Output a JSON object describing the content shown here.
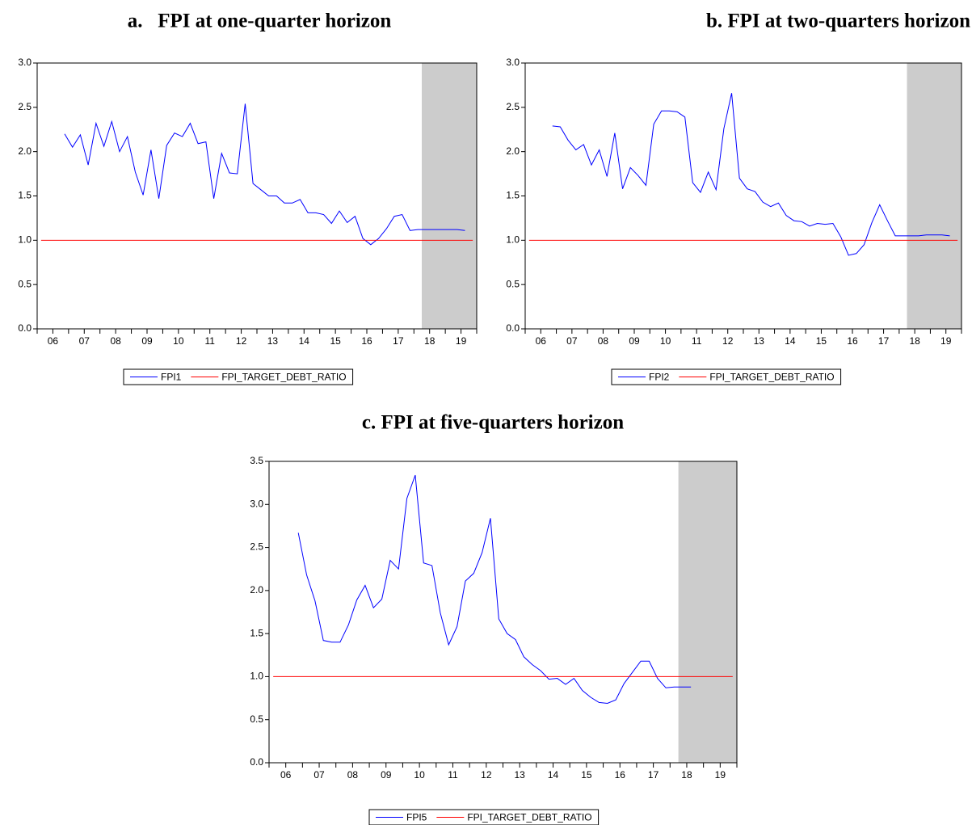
{
  "chart_data": [
    {
      "type": "line",
      "title": "a.   FPI at one-quarter horizon",
      "categories": [
        "06",
        null,
        null,
        null,
        "07",
        null,
        null,
        null,
        "08",
        null,
        null,
        null,
        "09",
        null,
        null,
        null,
        "10",
        null,
        null,
        null,
        "11",
        null,
        null,
        null,
        "12",
        null,
        null,
        null,
        "13",
        null,
        null,
        null,
        "14",
        null,
        null,
        null,
        "15",
        null,
        null,
        null,
        "16",
        null,
        null,
        null,
        "17",
        null,
        null,
        null,
        "18",
        null,
        null,
        null,
        "19",
        null,
        null,
        null
      ],
      "series": [
        {
          "name": "FPI1",
          "color": "#0000ff",
          "values": [
            null,
            null,
            null,
            2.2,
            2.05,
            2.19,
            1.85,
            2.32,
            2.06,
            2.34,
            2.0,
            2.17,
            1.77,
            1.51,
            2.02,
            1.47,
            2.07,
            2.21,
            2.17,
            2.32,
            2.09,
            2.11,
            1.47,
            1.98,
            1.76,
            1.75,
            2.54,
            1.64,
            1.57,
            1.5,
            1.5,
            1.42,
            1.42,
            1.46,
            1.31,
            1.31,
            1.29,
            1.19,
            1.33,
            1.2,
            1.27,
            1.02,
            0.95,
            1.02,
            1.13,
            1.27,
            1.29,
            1.11,
            1.12,
            1.12,
            1.12,
            1.12,
            1.12,
            1.12,
            1.11,
            null
          ]
        },
        {
          "name": "FPI_TARGET_DEBT_RATIO",
          "color": "#ff0000",
          "values": [
            1,
            1,
            1,
            1,
            1,
            1,
            1,
            1,
            1,
            1,
            1,
            1,
            1,
            1,
            1,
            1,
            1,
            1,
            1,
            1,
            1,
            1,
            1,
            1,
            1,
            1,
            1,
            1,
            1,
            1,
            1,
            1,
            1,
            1,
            1,
            1,
            1,
            1,
            1,
            1,
            1,
            1,
            1,
            1,
            1,
            1,
            1,
            1,
            1,
            1,
            1,
            1,
            1,
            1,
            1,
            1
          ]
        }
      ],
      "ylim": [
        0,
        3
      ],
      "yticks": [
        {
          "value": 0,
          "label": "0.0"
        },
        {
          "value": 0.5,
          "label": "0.5"
        },
        {
          "value": 1,
          "label": "1.0"
        },
        {
          "value": 1.5,
          "label": "1.5"
        },
        {
          "value": 2,
          "label": "2.0"
        },
        {
          "value": 2.5,
          "label": "2.5"
        },
        {
          "value": 3,
          "label": "3.0"
        }
      ],
      "shade": [
        49,
        56
      ],
      "shade_color": "#cccccc"
    },
    {
      "type": "line",
      "title": "b. FPI at two-quarters horizon",
      "categories": [
        "06",
        null,
        null,
        null,
        "07",
        null,
        null,
        null,
        "08",
        null,
        null,
        null,
        "09",
        null,
        null,
        null,
        "10",
        null,
        null,
        null,
        "11",
        null,
        null,
        null,
        "12",
        null,
        null,
        null,
        "13",
        null,
        null,
        null,
        "14",
        null,
        null,
        null,
        "15",
        null,
        null,
        null,
        "16",
        null,
        null,
        null,
        "17",
        null,
        null,
        null,
        "18",
        null,
        null,
        null,
        "19",
        null,
        null,
        null
      ],
      "series": [
        {
          "name": "FPI2",
          "color": "#0000ff",
          "values": [
            null,
            null,
            null,
            2.29,
            2.28,
            2.13,
            2.02,
            2.08,
            1.85,
            2.02,
            1.72,
            2.21,
            1.58,
            1.82,
            1.73,
            1.62,
            2.31,
            2.46,
            2.46,
            2.45,
            2.39,
            1.65,
            1.54,
            1.77,
            1.57,
            2.26,
            2.66,
            1.7,
            1.58,
            1.55,
            1.43,
            1.38,
            1.42,
            1.28,
            1.22,
            1.21,
            1.16,
            1.19,
            1.18,
            1.19,
            1.04,
            0.83,
            0.85,
            0.95,
            1.2,
            1.4,
            1.22,
            1.05,
            1.05,
            1.05,
            1.05,
            1.06,
            1.06,
            1.06,
            1.05,
            null
          ]
        },
        {
          "name": "FPI_TARGET_DEBT_RATIO",
          "color": "#ff0000",
          "values": [
            1,
            1,
            1,
            1,
            1,
            1,
            1,
            1,
            1,
            1,
            1,
            1,
            1,
            1,
            1,
            1,
            1,
            1,
            1,
            1,
            1,
            1,
            1,
            1,
            1,
            1,
            1,
            1,
            1,
            1,
            1,
            1,
            1,
            1,
            1,
            1,
            1,
            1,
            1,
            1,
            1,
            1,
            1,
            1,
            1,
            1,
            1,
            1,
            1,
            1,
            1,
            1,
            1,
            1,
            1,
            1
          ]
        }
      ],
      "ylim": [
        0,
        3
      ],
      "yticks": [
        {
          "value": 0,
          "label": "0.0"
        },
        {
          "value": 0.5,
          "label": "0.5"
        },
        {
          "value": 1,
          "label": "1.0"
        },
        {
          "value": 1.5,
          "label": "1.5"
        },
        {
          "value": 2,
          "label": "2.0"
        },
        {
          "value": 2.5,
          "label": "2.5"
        },
        {
          "value": 3,
          "label": "3.0"
        }
      ],
      "shade": [
        49,
        56
      ],
      "shade_color": "#cccccc"
    },
    {
      "type": "line",
      "title": "c. FPI at five-quarters horizon",
      "categories": [
        "06",
        null,
        null,
        null,
        "07",
        null,
        null,
        null,
        "08",
        null,
        null,
        null,
        "09",
        null,
        null,
        null,
        "10",
        null,
        null,
        null,
        "11",
        null,
        null,
        null,
        "12",
        null,
        null,
        null,
        "13",
        null,
        null,
        null,
        "14",
        null,
        null,
        null,
        "15",
        null,
        null,
        null,
        "16",
        null,
        null,
        null,
        "17",
        null,
        null,
        null,
        "18",
        null,
        null,
        null,
        "19",
        null,
        null,
        null
      ],
      "series": [
        {
          "name": "FPI5",
          "color": "#0000ff",
          "values": [
            null,
            null,
            null,
            2.67,
            2.18,
            1.88,
            1.42,
            1.4,
            1.4,
            1.6,
            1.89,
            2.06,
            1.8,
            1.9,
            2.35,
            2.25,
            3.07,
            3.34,
            2.32,
            2.29,
            1.74,
            1.37,
            1.58,
            2.11,
            2.2,
            2.44,
            2.84,
            1.67,
            1.5,
            1.43,
            1.23,
            1.14,
            1.07,
            0.97,
            0.98,
            0.91,
            0.98,
            0.84,
            0.76,
            0.7,
            0.69,
            0.73,
            0.92,
            1.05,
            1.18,
            1.18,
            0.98,
            0.87,
            0.88,
            0.88,
            0.88,
            null,
            null,
            null,
            null,
            null
          ]
        },
        {
          "name": "FPI_TARGET_DEBT_RATIO",
          "color": "#ff0000",
          "values": [
            1,
            1,
            1,
            1,
            1,
            1,
            1,
            1,
            1,
            1,
            1,
            1,
            1,
            1,
            1,
            1,
            1,
            1,
            1,
            1,
            1,
            1,
            1,
            1,
            1,
            1,
            1,
            1,
            1,
            1,
            1,
            1,
            1,
            1,
            1,
            1,
            1,
            1,
            1,
            1,
            1,
            1,
            1,
            1,
            1,
            1,
            1,
            1,
            1,
            1,
            1,
            1,
            1,
            1,
            1,
            1
          ]
        }
      ],
      "ylim": [
        0,
        3.5
      ],
      "yticks": [
        {
          "value": 0,
          "label": "0.0"
        },
        {
          "value": 0.5,
          "label": "0.5"
        },
        {
          "value": 1,
          "label": "1.0"
        },
        {
          "value": 1.5,
          "label": "1.5"
        },
        {
          "value": 2,
          "label": "2.0"
        },
        {
          "value": 2.5,
          "label": "2.5"
        },
        {
          "value": 3,
          "label": "3.0"
        },
        {
          "value": 3.5,
          "label": "3.5"
        }
      ],
      "shade": [
        49,
        56
      ],
      "shade_color": "#cccccc"
    }
  ]
}
